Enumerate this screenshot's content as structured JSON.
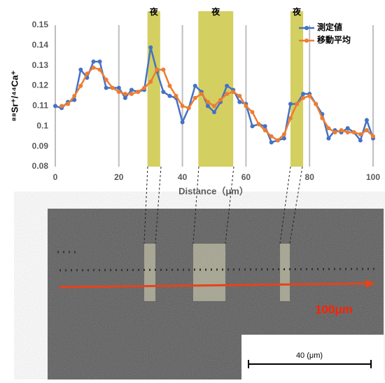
{
  "chart_data": {
    "type": "line",
    "x_label": "Distance（μm）",
    "y_label": "⁸⁸Sr⁺/⁴⁴Ca⁺",
    "x": [
      0,
      2,
      4,
      6,
      8,
      10,
      12,
      14,
      16,
      18,
      20,
      22,
      24,
      26,
      28,
      30,
      32,
      34,
      36,
      38,
      40,
      42,
      44,
      46,
      48,
      50,
      52,
      54,
      56,
      58,
      60,
      62,
      64,
      66,
      68,
      70,
      72,
      74,
      76,
      78,
      80,
      82,
      84,
      86,
      88,
      90,
      92,
      94,
      96,
      98,
      100
    ],
    "series": [
      {
        "name": "測定値",
        "color": "#4472c4",
        "marker": true,
        "values": [
          0.11,
          0.109,
          0.112,
          0.113,
          0.128,
          0.124,
          0.132,
          0.132,
          0.119,
          0.119,
          0.119,
          0.114,
          0.118,
          0.117,
          0.118,
          0.139,
          0.127,
          0.117,
          0.115,
          0.114,
          0.102,
          0.109,
          0.12,
          0.117,
          0.11,
          0.107,
          0.112,
          0.12,
          0.118,
          0.112,
          0.111,
          0.1,
          0.101,
          0.1,
          0.092,
          0.093,
          0.094,
          0.111,
          0.111,
          0.116,
          0.116,
          0.111,
          0.106,
          0.094,
          0.098,
          0.097,
          0.099,
          0.097,
          0.093,
          0.103,
          0.094
        ]
      },
      {
        "name": "移動平均",
        "color": "#ed7d31",
        "marker": true,
        "values": [
          null,
          0.11,
          0.111,
          0.115,
          0.12,
          0.126,
          0.129,
          0.128,
          0.123,
          0.119,
          0.117,
          0.116,
          0.116,
          0.117,
          0.119,
          0.122,
          0.128,
          0.128,
          0.12,
          0.115,
          0.11,
          0.109,
          0.114,
          0.116,
          0.112,
          0.11,
          0.113,
          0.116,
          0.117,
          0.115,
          0.11,
          0.107,
          0.101,
          0.098,
          0.095,
          0.093,
          0.096,
          0.104,
          0.111,
          0.114,
          0.115,
          0.111,
          0.104,
          0.099,
          0.097,
          0.098,
          0.097,
          0.097,
          0.096,
          0.098,
          0.095
        ]
      }
    ],
    "xlim": [
      0,
      100
    ],
    "xticks": [
      0,
      20,
      40,
      60,
      80,
      100
    ],
    "ylim": [
      0.08,
      0.15
    ],
    "yticks": [
      0.08,
      0.09,
      0.1,
      0.11,
      0.12,
      0.13,
      0.14,
      0.15
    ],
    "grid": "x",
    "legend": "upper right",
    "night_bands": [
      {
        "label": "夜",
        "range": [
          29,
          33
        ]
      },
      {
        "label": "夜",
        "range": [
          45,
          56
        ]
      },
      {
        "label": "夜",
        "range": [
          74,
          78
        ]
      }
    ]
  },
  "image": {
    "label": "100μm",
    "scale_label": "40 (μm)"
  }
}
